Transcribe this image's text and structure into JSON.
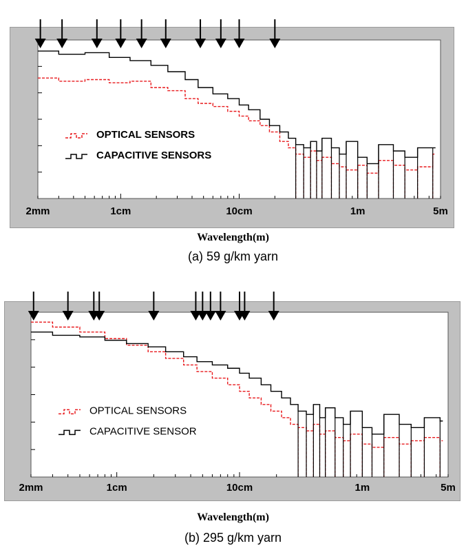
{
  "chart_data": [
    {
      "type": "line",
      "caption": "(a) 59 g/km yarn",
      "xlabel": "Wavelength(m)",
      "ylabel": "",
      "x_scale": "log",
      "xlim": [
        0.002,
        5
      ],
      "x_ticks": [
        {
          "value": 0.002,
          "label": "2mm"
        },
        {
          "value": 0.01,
          "label": "1cm"
        },
        {
          "value": 0.1,
          "label": "10cm"
        },
        {
          "value": 1,
          "label": "1m"
        },
        {
          "value": 5,
          "label": "5m"
        }
      ],
      "ylim": [
        0,
        10
      ],
      "legend": {
        "placement": "middle-left",
        "bold": true
      },
      "series": [
        {
          "name": "OPTICAL SENSORS",
          "color": "#e8191c",
          "style": "dashed-step",
          "x": [
            0.002,
            0.003,
            0.005,
            0.008,
            0.012,
            0.018,
            0.025,
            0.035,
            0.045,
            0.06,
            0.08,
            0.1,
            0.12,
            0.15,
            0.18,
            0.22,
            0.26,
            0.3,
            0.35,
            0.4,
            0.45,
            0.5,
            0.6,
            0.7,
            0.8,
            1.0,
            1.2,
            1.5,
            2.0,
            2.5,
            3.2,
            4.3
          ],
          "y": [
            7.6,
            7.4,
            7.5,
            7.3,
            7.4,
            7.0,
            6.8,
            6.3,
            6.0,
            5.8,
            5.5,
            5.2,
            4.9,
            4.6,
            4.2,
            3.6,
            3.2,
            2.8,
            2.6,
            3.0,
            2.4,
            2.6,
            2.2,
            2.0,
            1.8,
            2.1,
            1.6,
            2.4,
            2.1,
            1.8,
            2.0,
            2.8
          ]
        },
        {
          "name": "CAPACITIVE SENSORS",
          "color": "#000000",
          "style": "step",
          "x": [
            0.002,
            0.003,
            0.005,
            0.008,
            0.012,
            0.018,
            0.025,
            0.035,
            0.045,
            0.06,
            0.08,
            0.1,
            0.12,
            0.15,
            0.18,
            0.22,
            0.26,
            0.3,
            0.35,
            0.4,
            0.45,
            0.5,
            0.6,
            0.7,
            0.8,
            1.0,
            1.2,
            1.5,
            2.0,
            2.5,
            3.2,
            4.3
          ],
          "y": [
            9.3,
            9.1,
            9.2,
            8.9,
            8.7,
            8.4,
            8.0,
            7.5,
            7.0,
            6.6,
            6.3,
            5.9,
            5.6,
            5.0,
            4.6,
            4.2,
            3.8,
            3.4,
            3.2,
            3.6,
            3.0,
            3.8,
            3.2,
            2.8,
            3.6,
            2.6,
            2.2,
            3.4,
            3.0,
            2.6,
            3.2,
            3.2
          ]
        }
      ],
      "arrows_x": [
        0.0021,
        0.0032,
        0.0063,
        0.01,
        0.015,
        0.024,
        0.047,
        0.07,
        0.1,
        0.2
      ]
    },
    {
      "type": "line",
      "caption": "(b) 295 g/km yarn",
      "xlabel": "Wavelength(m)",
      "ylabel": "",
      "x_scale": "log",
      "xlim": [
        0.002,
        5
      ],
      "x_ticks": [
        {
          "value": 0.002,
          "label": "2mm"
        },
        {
          "value": 0.01,
          "label": "1cm"
        },
        {
          "value": 0.1,
          "label": "10cm"
        },
        {
          "value": 1,
          "label": "1m"
        },
        {
          "value": 5,
          "label": "5m"
        }
      ],
      "ylim": [
        0,
        10
      ],
      "legend": {
        "placement": "middle-left",
        "bold": false
      },
      "series": [
        {
          "name": "OPTICAL SENSORS",
          "color": "#e8191c",
          "style": "dashed-step",
          "x": [
            0.002,
            0.003,
            0.005,
            0.008,
            0.012,
            0.018,
            0.025,
            0.035,
            0.045,
            0.06,
            0.08,
            0.1,
            0.12,
            0.15,
            0.18,
            0.22,
            0.26,
            0.3,
            0.35,
            0.4,
            0.45,
            0.5,
            0.6,
            0.7,
            0.8,
            1.0,
            1.2,
            1.5,
            2.0,
            2.5,
            3.2,
            4.3
          ],
          "y": [
            9.4,
            9.1,
            8.8,
            8.4,
            8.0,
            7.6,
            7.2,
            6.8,
            6.4,
            6.0,
            5.6,
            5.2,
            4.8,
            4.4,
            4.0,
            3.6,
            3.2,
            3.0,
            2.8,
            3.2,
            2.6,
            2.8,
            2.4,
            2.2,
            2.6,
            2.0,
            1.8,
            2.4,
            2.0,
            2.2,
            2.4,
            2.2
          ]
        },
        {
          "name": "CAPACITIVE SENSOR",
          "color": "#000000",
          "style": "step",
          "x": [
            0.002,
            0.003,
            0.005,
            0.008,
            0.012,
            0.018,
            0.025,
            0.035,
            0.045,
            0.06,
            0.08,
            0.1,
            0.12,
            0.15,
            0.18,
            0.22,
            0.26,
            0.3,
            0.35,
            0.4,
            0.45,
            0.5,
            0.6,
            0.7,
            0.8,
            1.0,
            1.2,
            1.5,
            2.0,
            2.5,
            3.2,
            4.3
          ],
          "y": [
            8.8,
            8.6,
            8.5,
            8.3,
            8.1,
            7.9,
            7.6,
            7.3,
            7.0,
            6.8,
            6.6,
            6.3,
            6.0,
            5.6,
            5.2,
            4.8,
            4.4,
            4.0,
            3.8,
            4.4,
            3.6,
            4.2,
            3.6,
            3.2,
            4.0,
            3.0,
            2.6,
            3.8,
            3.2,
            3.0,
            3.6,
            3.4
          ]
        }
      ],
      "arrows_x": [
        0.0021,
        0.004,
        0.0065,
        0.0072,
        0.02,
        0.044,
        0.05,
        0.058,
        0.07,
        0.1,
        0.11,
        0.19
      ]
    }
  ]
}
